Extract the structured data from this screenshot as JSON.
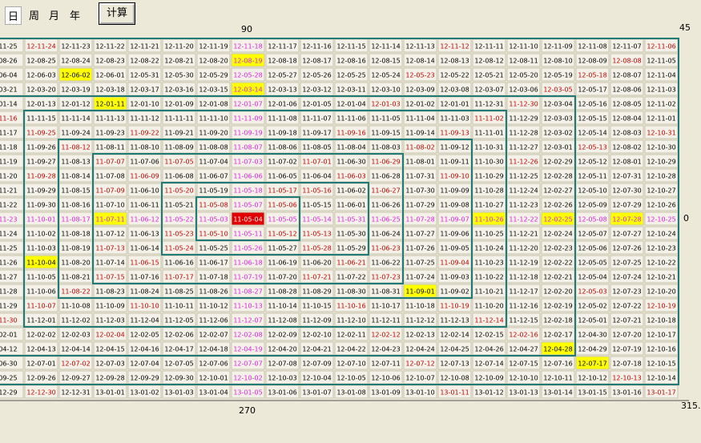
{
  "toolbar": {
    "tabs": [
      "日",
      "周",
      "月",
      "年"
    ],
    "button": "计算"
  },
  "labels": {
    "top": "90",
    "top_right": "45",
    "right": "0",
    "bottom": "270",
    "bottom_right": "315."
  },
  "grid": {
    "rows": [
      [
        "-11-25",
        "12-11-24",
        "12-11-23",
        "12-11-22",
        "12-11-21",
        "12-11-20",
        "12-11-19",
        "12-11-18",
        "12-11-17",
        "12-11-16",
        "12-11-15",
        "12-11-14",
        "12-11-13",
        "12-11-12",
        "12-11-11",
        "12-11-10",
        "12-11-09",
        "12-11-08",
        "12-11-07",
        "12-11-06"
      ],
      [
        "-08-26",
        "12-08-25",
        "12-08-24",
        "12-08-23",
        "12-08-22",
        "12-08-21",
        "12-08-20",
        "12-08-19",
        "12-08-18",
        "12-08-17",
        "12-08-16",
        "12-08-15",
        "12-08-14",
        "12-08-13",
        "12-08-12",
        "12-08-11",
        "12-08-10",
        "12-08-09",
        "12-08-08",
        "12-11-05"
      ],
      [
        "-06-04",
        "12-06-03",
        "12-06-02",
        "12-06-01",
        "12-05-31",
        "12-05-30",
        "12-05-29",
        "12-05-28",
        "12-05-27",
        "12-05-26",
        "12-05-25",
        "12-05-24",
        "12-05-23",
        "12-05-22",
        "12-05-21",
        "12-05-20",
        "12-05-19",
        "12-05-18",
        "12-08-07",
        "12-11-04"
      ],
      [
        "-03-21",
        "12-03-20",
        "12-03-19",
        "12-03-18",
        "12-03-17",
        "12-03-16",
        "12-03-15",
        "12-03-14",
        "12-03-13",
        "12-03-12",
        "12-03-11",
        "12-03-10",
        "12-03-09",
        "12-03-08",
        "12-03-07",
        "12-03-06",
        "12-03-05",
        "12-05-17",
        "12-08-06",
        "12-11-03"
      ],
      [
        "-01-14",
        "12-01-13",
        "12-01-12",
        "12-01-11",
        "12-01-10",
        "12-01-09",
        "12-01-08",
        "12-01-07",
        "12-01-06",
        "12-01-05",
        "12-01-04",
        "12-01-03",
        "12-01-02",
        "12-01-01",
        "11-12-31",
        "11-12-30",
        "12-03-04",
        "12-05-16",
        "12-08-05",
        "12-11-02"
      ],
      [
        "-11-16",
        "11-11-15",
        "11-11-14",
        "11-11-13",
        "11-11-12",
        "11-11-11",
        "11-11-10",
        "11-11-09",
        "11-11-08",
        "11-11-07",
        "11-11-06",
        "11-11-05",
        "11-11-04",
        "11-11-03",
        "11-11-02",
        "11-12-29",
        "12-03-03",
        "12-05-15",
        "12-08-04",
        "12-11-01"
      ],
      [
        "-11-17",
        "11-09-25",
        "11-09-24",
        "11-09-23",
        "11-09-22",
        "11-09-21",
        "11-09-20",
        "11-09-19",
        "11-09-18",
        "11-09-17",
        "11-09-16",
        "11-09-15",
        "11-09-14",
        "11-09-13",
        "11-11-01",
        "11-12-28",
        "12-03-02",
        "12-05-14",
        "12-08-03",
        "12-10-31"
      ],
      [
        "-11-18",
        "11-09-26",
        "11-08-12",
        "11-08-11",
        "11-08-10",
        "11-08-09",
        "11-08-08",
        "11-08-07",
        "11-08-06",
        "11-08-05",
        "11-08-04",
        "11-08-03",
        "11-08-02",
        "11-09-12",
        "11-10-31",
        "11-12-27",
        "12-03-01",
        "12-05-13",
        "12-08-02",
        "12-10-30"
      ],
      [
        "-11-19",
        "11-09-27",
        "11-08-13",
        "11-07-07",
        "11-07-06",
        "11-07-05",
        "11-07-04",
        "11-07-03",
        "11-07-02",
        "11-07-01",
        "11-06-30",
        "11-06-29",
        "11-08-01",
        "11-09-11",
        "11-10-30",
        "11-12-26",
        "12-02-29",
        "12-05-12",
        "12-08-01",
        "12-10-29"
      ],
      [
        "-11-20",
        "11-09-28",
        "11-08-14",
        "11-07-08",
        "11-06-09",
        "11-06-08",
        "11-06-07",
        "11-06-06",
        "11-06-05",
        "11-06-04",
        "11-06-03",
        "11-06-28",
        "11-07-31",
        "11-09-10",
        "11-10-29",
        "11-12-25",
        "12-02-28",
        "12-05-11",
        "12-07-31",
        "12-10-28"
      ],
      [
        "-11-21",
        "11-09-29",
        "11-08-15",
        "11-07-09",
        "11-06-10",
        "11-05-20",
        "11-05-19",
        "11-05-18",
        "11-05-17",
        "11-05-16",
        "11-06-02",
        "11-06-27",
        "11-07-30",
        "11-09-09",
        "11-10-28",
        "11-12-24",
        "12-02-27",
        "12-05-10",
        "12-07-30",
        "12-10-27"
      ],
      [
        "-11-22",
        "11-09-30",
        "11-08-16",
        "11-07-10",
        "11-06-11",
        "11-05-21",
        "11-05-08",
        "11-05-07",
        "11-05-06",
        "11-05-15",
        "11-06-01",
        "11-06-26",
        "11-07-29",
        "11-09-08",
        "11-10-27",
        "11-12-23",
        "12-02-26",
        "12-05-09",
        "12-07-29",
        "12-10-26"
      ],
      [
        "-11-23",
        "11-10-01",
        "11-08-17",
        "11-07-11",
        "11-06-12",
        "11-05-22",
        "11-05-03",
        "11-05-04",
        "11-05-05",
        "11-05-14",
        "11-05-31",
        "11-06-25",
        "11-07-28",
        "11-09-07",
        "11-10-26",
        "11-12-22",
        "12-02-25",
        "12-05-08",
        "12-07-28",
        "12-10-25"
      ],
      [
        "-11-24",
        "11-10-02",
        "11-08-18",
        "11-07-12",
        "11-06-13",
        "11-05-23",
        "11-05-10",
        "11-05-11",
        "11-05-12",
        "11-05-13",
        "11-05-30",
        "11-06-24",
        "11-07-27",
        "11-09-06",
        "11-10-25",
        "11-12-21",
        "12-02-24",
        "12-05-07",
        "12-07-27",
        "12-10-24"
      ],
      [
        "-11-25",
        "11-10-03",
        "11-08-19",
        "11-07-13",
        "11-06-14",
        "11-05-24",
        "11-05-25",
        "11-05-26",
        "11-05-27",
        "11-05-28",
        "11-05-29",
        "11-06-23",
        "11-07-26",
        "11-09-05",
        "11-10-24",
        "11-12-20",
        "12-02-23",
        "12-05-06",
        "12-07-26",
        "12-10-23"
      ],
      [
        "-11-26",
        "11-10-04",
        "11-08-20",
        "11-07-14",
        "11-06-15",
        "11-06-16",
        "11-06-17",
        "11-06-18",
        "11-06-19",
        "11-06-20",
        "11-06-21",
        "11-06-22",
        "11-07-25",
        "11-09-04",
        "11-10-23",
        "11-12-19",
        "12-02-22",
        "12-05-05",
        "12-07-25",
        "12-10-22"
      ],
      [
        "-11-27",
        "11-10-05",
        "11-08-21",
        "11-07-15",
        "11-07-16",
        "11-07-17",
        "11-07-18",
        "11-07-19",
        "11-07-20",
        "11-07-21",
        "11-07-22",
        "11-07-23",
        "11-07-24",
        "11-09-03",
        "11-10-22",
        "11-12-18",
        "12-02-21",
        "12-05-04",
        "12-07-24",
        "12-10-21"
      ],
      [
        "-11-28",
        "11-10-06",
        "11-08-22",
        "11-08-23",
        "11-08-24",
        "11-08-25",
        "11-08-26",
        "11-08-27",
        "11-08-28",
        "11-08-29",
        "11-08-30",
        "11-08-31",
        "11-09-01",
        "11-09-02",
        "11-10-21",
        "11-12-17",
        "12-02-20",
        "12-05-03",
        "12-07-23",
        "12-10-20"
      ],
      [
        "-11-29",
        "11-10-07",
        "11-10-08",
        "11-10-09",
        "11-10-10",
        "11-10-11",
        "11-10-12",
        "11-10-13",
        "11-10-14",
        "11-10-15",
        "11-10-16",
        "11-10-17",
        "11-10-18",
        "11-10-19",
        "11-10-20",
        "11-12-16",
        "12-02-19",
        "12-05-02",
        "12-07-22",
        "12-10-19"
      ],
      [
        "-11-30",
        "11-12-01",
        "11-12-02",
        "11-12-03",
        "11-12-04",
        "11-12-05",
        "11-12-06",
        "11-12-07",
        "11-12-08",
        "11-12-09",
        "11-12-10",
        "11-12-11",
        "11-12-12",
        "11-12-13",
        "11-12-14",
        "11-12-15",
        "12-02-18",
        "12-05-01",
        "12-07-21",
        "12-10-18"
      ],
      [
        "-02-01",
        "12-02-02",
        "12-02-03",
        "12-02-04",
        "12-02-05",
        "12-02-06",
        "12-02-07",
        "12-02-08",
        "12-02-09",
        "12-02-10",
        "12-02-11",
        "12-02-12",
        "12-02-13",
        "12-02-14",
        "12-02-15",
        "12-02-16",
        "12-02-17",
        "12-04-30",
        "12-07-20",
        "12-10-17"
      ],
      [
        "-04-12",
        "12-04-13",
        "12-04-14",
        "12-04-15",
        "12-04-16",
        "12-04-17",
        "12-04-18",
        "12-04-19",
        "12-04-20",
        "12-04-21",
        "12-04-22",
        "12-04-23",
        "12-04-24",
        "12-04-25",
        "12-04-26",
        "12-04-27",
        "12-04-28",
        "12-04-29",
        "12-07-19",
        "12-10-16"
      ],
      [
        "-06-30",
        "12-07-01",
        "12-07-02",
        "12-07-03",
        "12-07-04",
        "12-07-05",
        "12-07-06",
        "12-07-07",
        "12-07-08",
        "12-07-09",
        "12-07-10",
        "12-07-11",
        "12-07-12",
        "12-07-13",
        "12-07-14",
        "12-07-15",
        "12-07-16",
        "12-07-17",
        "12-07-18",
        "12-10-15"
      ],
      [
        "-09-25",
        "12-09-26",
        "12-09-27",
        "12-09-28",
        "12-09-29",
        "12-09-30",
        "12-10-01",
        "12-10-02",
        "12-10-03",
        "12-10-04",
        "12-10-05",
        "12-10-06",
        "12-10-07",
        "12-10-08",
        "12-10-09",
        "12-10-10",
        "12-10-11",
        "12-10-12",
        "12-10-13",
        "12-10-14"
      ],
      [
        "-12-29",
        "12-12-30",
        "12-12-31",
        "13-01-01",
        "13-01-02",
        "13-01-03",
        "13-01-04",
        "13-01-05",
        "13-01-06",
        "13-01-07",
        "13-01-08",
        "13-01-09",
        "13-01-10",
        "13-01-11",
        "13-01-12",
        "13-01-13",
        "13-01-14",
        "13-01-15",
        "13-01-16",
        "13-01-17"
      ]
    ]
  }
}
